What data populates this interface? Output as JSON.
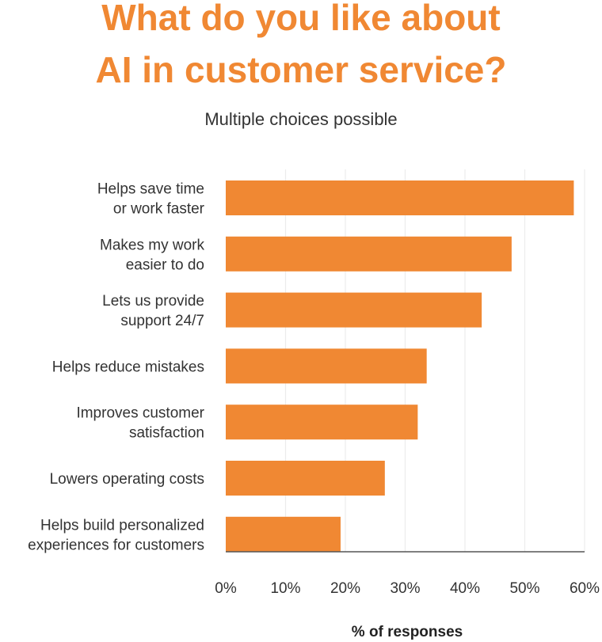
{
  "chart_data": {
    "type": "bar",
    "orientation": "horizontal",
    "title": [
      "What do you like about",
      "AI in customer service?"
    ],
    "subtitle": "Multiple choices possible",
    "categories": [
      [
        "Helps save time",
        "or work faster"
      ],
      [
        "Makes my work",
        "easier to do"
      ],
      [
        "Lets us provide",
        "support 24/7"
      ],
      [
        "Helps reduce mistakes"
      ],
      [
        "Improves customer",
        "satisfaction"
      ],
      [
        "Lowers operating costs"
      ],
      [
        "Helps build personalized",
        "experiences for customers"
      ]
    ],
    "values": [
      58.2,
      47.8,
      42.8,
      33.6,
      32.1,
      26.6,
      19.2
    ],
    "xlabel": "% of responses",
    "ylabel": "",
    "xlim": [
      0,
      60
    ],
    "ticks": [
      "0%",
      "10%",
      "20%",
      "30%",
      "40%",
      "50%",
      "60%"
    ],
    "tick_values": [
      0,
      10,
      20,
      30,
      40,
      50,
      60
    ],
    "grid": true,
    "bar_color": "#F08833"
  }
}
